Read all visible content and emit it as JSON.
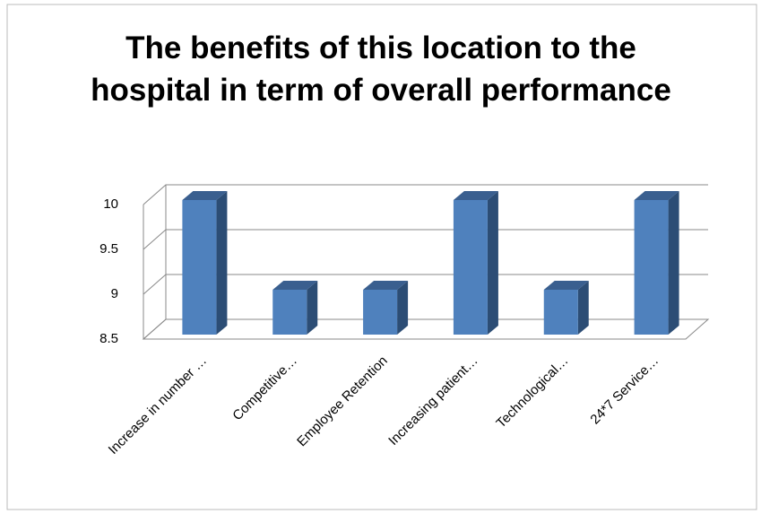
{
  "chart_data": {
    "type": "bar3d",
    "title": "The benefits of this location to the hospital in term of overall performance",
    "categories": [
      "Increase in number …",
      "Competitive…",
      "Employee Retention",
      "Increasing patient…",
      "Technological…",
      "24*7 Service…"
    ],
    "values": [
      10,
      9,
      9,
      10,
      9,
      10
    ],
    "color": "#4f81bd",
    "ylim": [
      8.5,
      10
    ],
    "yticks": [
      8.5,
      9,
      9.5,
      10
    ],
    "grid": true
  }
}
